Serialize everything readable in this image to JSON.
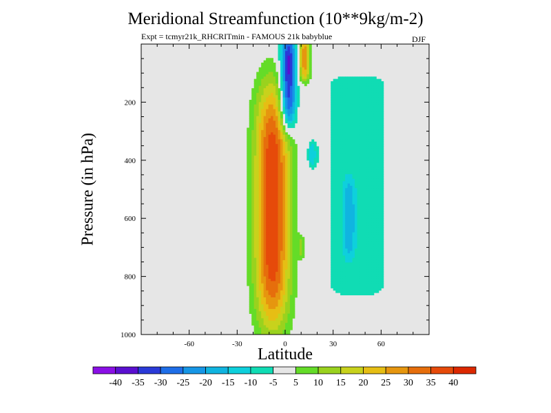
{
  "chart_data": {
    "type": "filled-contour",
    "title": "Meridional Streamfunction (10**9kg/m-2)",
    "subtitle": "Expt = tcmyr21k_RHCRITmin - FAMOUS 21k babyblue",
    "season": "DJF",
    "xlabel": "Latitude",
    "ylabel": "Pressure (in hPa)",
    "xlim": [
      -90,
      90
    ],
    "ylim": [
      1000,
      0
    ],
    "x_ticks": [
      -60,
      -30,
      0,
      30,
      60
    ],
    "x_tick_labels": [
      "-60",
      "-30",
      "0",
      "30",
      "60"
    ],
    "y_ticks": [
      200,
      400,
      600,
      800,
      1000
    ],
    "y_tick_labels": [
      "200",
      "400",
      "600",
      "800",
      "1000"
    ],
    "background_color": "#e6e6e6",
    "colorbar": {
      "levels": [
        -40,
        -35,
        -30,
        -25,
        -20,
        -15,
        -10,
        -5,
        5,
        10,
        15,
        20,
        25,
        30,
        35,
        40
      ],
      "labels": [
        "-40",
        "-35",
        "-30",
        "-25",
        "-20",
        "-15",
        "-10",
        "-5",
        "5",
        "10",
        "15",
        "20",
        "25",
        "30",
        "35",
        "40"
      ],
      "colors": [
        "#8a0fe6",
        "#5a0fd0",
        "#2a3ad8",
        "#1e6ee8",
        "#1696e6",
        "#10b4e0",
        "#0ed0dc",
        "#10dcb4",
        "#e6e6e6",
        "#64dc28",
        "#9ad21e",
        "#c8d21c",
        "#e6be14",
        "#e6960f",
        "#e66e0c",
        "#e64a0a",
        "#dc2800"
      ]
    },
    "features": [
      {
        "name": "northern-hemisphere-cell",
        "lat": 45,
        "p_top": 70,
        "p_bottom": 950,
        "lat_halfwidth": 22,
        "value": -7
      },
      {
        "name": "tropical-positive-cell",
        "lat": -8,
        "p_center": 560,
        "lat_halfwidth": 11,
        "p_halfwidth": 430,
        "value": 40
      },
      {
        "name": "negative-upper-lobe",
        "lat": 2,
        "p_center": 130,
        "lat_halfwidth": 5,
        "p_halfwidth": 170,
        "value": -40
      },
      {
        "name": "upper-positive-lobe",
        "lat": 12,
        "p_center": 50,
        "lat_halfwidth": 3.5,
        "p_halfwidth": 80,
        "value": 28
      },
      {
        "name": "weak-negative-core-north",
        "lat": 40,
        "p_center": 600,
        "lat_halfwidth": 4,
        "p_halfwidth": 140,
        "value": -13
      },
      {
        "name": "weak-negative-core-subtropics",
        "lat": 17,
        "p_center": 380,
        "lat_halfwidth": 3,
        "p_halfwidth": 50,
        "value": -13
      },
      {
        "name": "small-positive-blob",
        "lat": 10,
        "p_center": 700,
        "lat_halfwidth": 2,
        "p_halfwidth": 40,
        "value": 9
      }
    ]
  }
}
